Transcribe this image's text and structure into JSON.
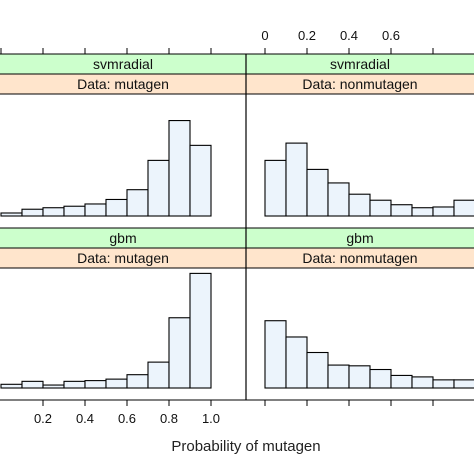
{
  "colors": {
    "bar_fill": "#ecf4fc",
    "bar_stroke": "#000000",
    "strip_model": "#ccffcc",
    "strip_data": "#ffe5cc",
    "panel_border": "#000000"
  },
  "chart_data": {
    "type": "bar",
    "title": "",
    "xlabel": "Probability of mutagen",
    "ylabel": "",
    "xlim": [
      0,
      1.05
    ],
    "x_ticks_bottom": [
      "0.2",
      "0.4",
      "0.6",
      "0.8",
      "1.0"
    ],
    "x_ticks_top": [
      "0",
      "0.2",
      "0.4",
      "0.6"
    ],
    "bins": [
      0.0,
      0.1,
      0.2,
      0.3,
      0.4,
      0.5,
      0.6,
      0.7,
      0.8,
      0.9,
      1.0
    ],
    "panels": [
      {
        "model": "svmradial",
        "data": "Data: mutagen",
        "values": [
          0.4,
          0.9,
          1.1,
          1.3,
          1.6,
          2.2,
          3.5,
          7.4,
          12.7,
          9.4
        ]
      },
      {
        "model": "svmradial",
        "data": "Data: nonmutagen",
        "values": [
          7.4,
          9.7,
          6.2,
          4.4,
          2.9,
          2.1,
          1.5,
          1.1,
          1.2,
          2.1
        ]
      },
      {
        "model": "gbm",
        "data": "Data: mutagen",
        "values": [
          0.5,
          0.9,
          0.4,
          0.9,
          1.0,
          1.2,
          1.8,
          3.5,
          9.5,
          15.5
        ]
      },
      {
        "model": "gbm",
        "data": "Data: nonmutagen",
        "values": [
          9.1,
          6.9,
          4.8,
          3.1,
          3.0,
          2.5,
          1.7,
          1.5,
          1.1,
          1.1
        ]
      }
    ]
  }
}
